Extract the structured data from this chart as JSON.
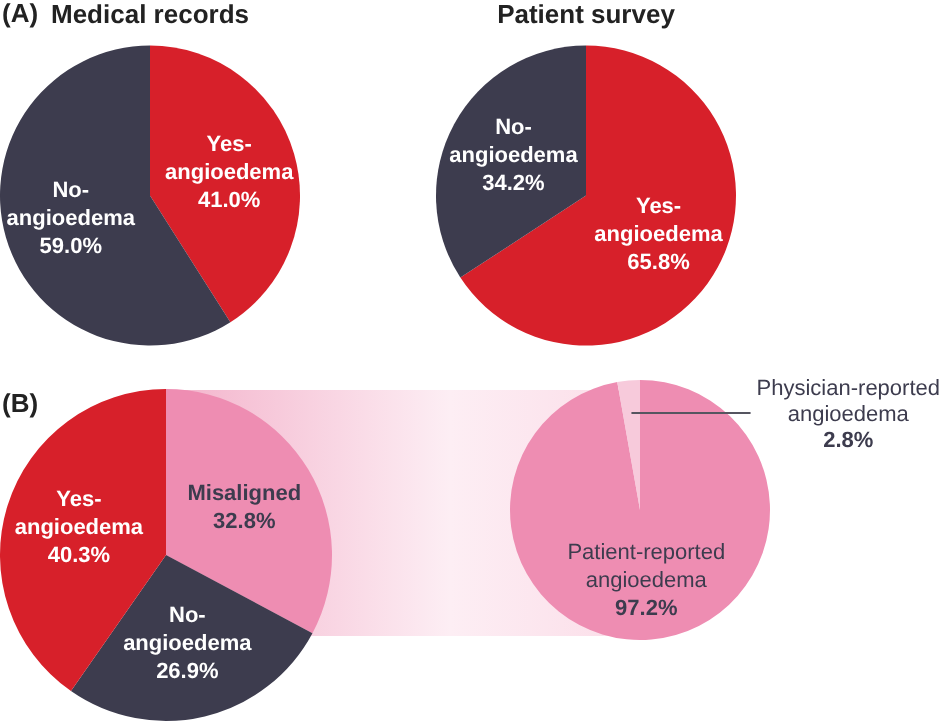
{
  "chart_data": [
    {
      "type": "pie",
      "title": "Medical records",
      "annotations": [
        "(A)"
      ],
      "categories": [
        "Yes-angioedema",
        "No-angioedema"
      ],
      "values": [
        41.0,
        59.0
      ],
      "colors": [
        "#d7202a",
        "#3d3c4e"
      ],
      "value_labels": [
        "41.0%",
        "59.0%"
      ],
      "legend": false
    },
    {
      "type": "pie",
      "title": "Patient survey",
      "categories": [
        "Yes-angioedema",
        "No-angioedema"
      ],
      "values": [
        65.8,
        34.2
      ],
      "colors": [
        "#d7202a",
        "#3d3c4e"
      ],
      "value_labels": [
        "65.8%",
        "34.2%"
      ],
      "legend": false
    },
    {
      "type": "pie",
      "annotations": [
        "(B)"
      ],
      "categories": [
        "Misaligned",
        "No-angioedema",
        "Yes-angioedema"
      ],
      "values": [
        32.8,
        26.9,
        40.3
      ],
      "colors": [
        "#ee8db2",
        "#3d3c4e",
        "#d7202a"
      ],
      "value_labels": [
        "32.8%",
        "26.9%",
        "40.3%"
      ],
      "legend": false
    },
    {
      "type": "pie",
      "categories": [
        "Patient-reported angioedema",
        "Physician-reported angioedema"
      ],
      "values": [
        97.2,
        2.8
      ],
      "colors": [
        "#ee8db2",
        "#f7cadb"
      ],
      "value_labels": [
        "97.2%",
        "2.8%"
      ],
      "legend": false
    }
  ]
}
